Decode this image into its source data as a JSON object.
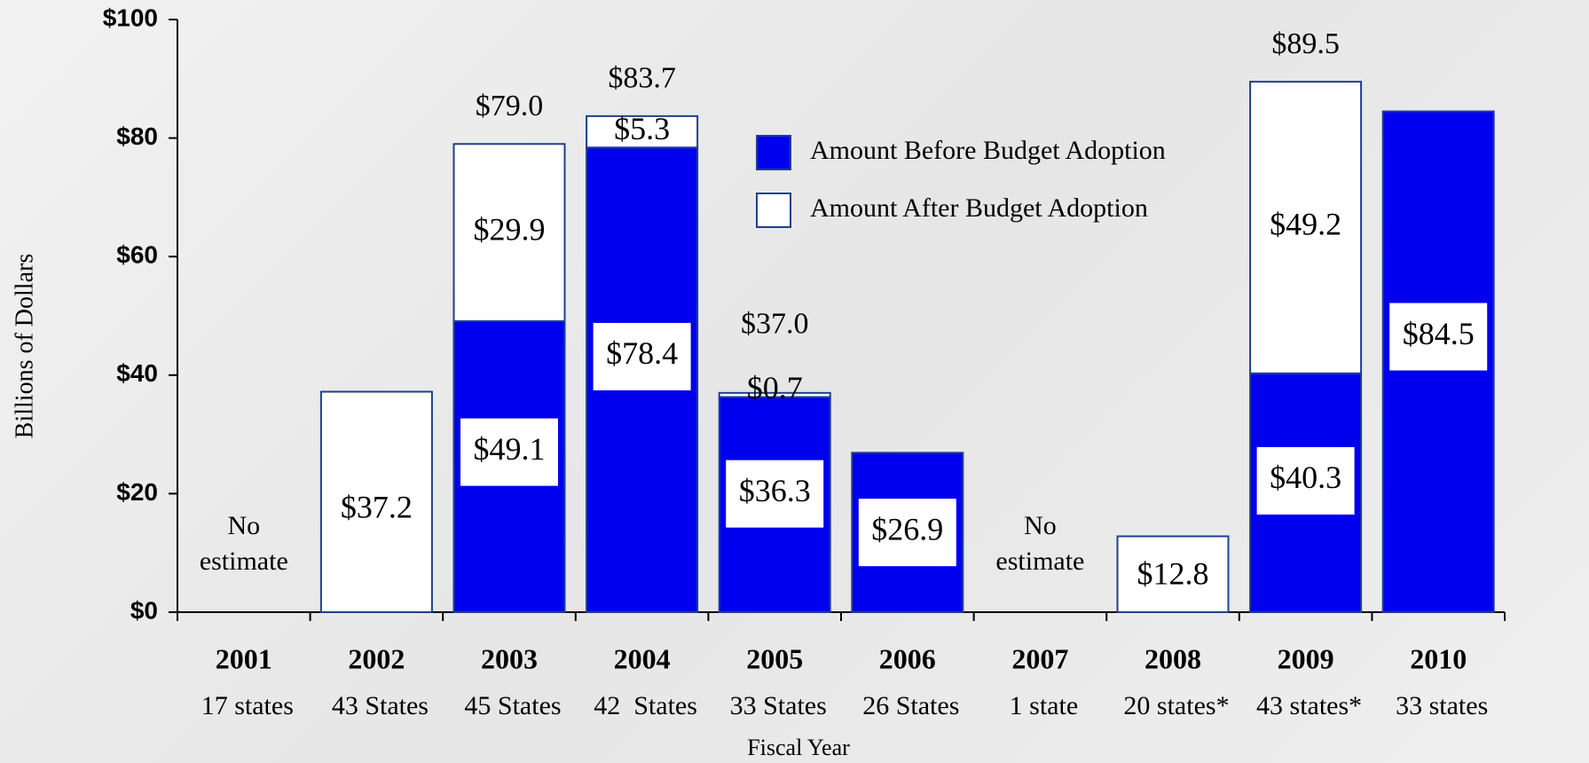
{
  "chart_data": {
    "type": "stacked_bar",
    "categories": [
      "2001",
      "2002",
      "2003",
      "2004",
      "2005",
      "2006",
      "2007",
      "2008",
      "2009",
      "2010"
    ],
    "sublabels": [
      "17 states",
      "43 States",
      "45 States",
      "42  States",
      "33 States",
      "26 States",
      "1 state",
      "20 states*",
      "43 states*",
      "33 states"
    ],
    "notes": [
      "No estimate",
      null,
      null,
      null,
      null,
      null,
      "No estimate",
      null,
      null,
      null
    ],
    "series": [
      {
        "name": "Amount Before Budget Adoption",
        "color": "#0000ee",
        "values": [
          null,
          null,
          49.1,
          78.4,
          36.3,
          26.9,
          null,
          null,
          40.3,
          84.5
        ],
        "value_labels": [
          null,
          null,
          "$49.1",
          "$78.4",
          "$36.3",
          "$26.9",
          null,
          null,
          "$40.3",
          "$84.5"
        ]
      },
      {
        "name": "Amount After Budget Adoption",
        "color": "#ffffff",
        "values": [
          null,
          37.2,
          29.9,
          5.3,
          0.7,
          null,
          null,
          12.8,
          49.2,
          null
        ],
        "value_labels": [
          null,
          "$37.2",
          "$29.9",
          "$5.3",
          "$0.7",
          null,
          null,
          "$12.8",
          "$49.2",
          null
        ]
      }
    ],
    "totals": [
      null,
      null,
      79.0,
      83.7,
      37.0,
      null,
      null,
      null,
      89.5,
      null
    ],
    "total_labels": [
      null,
      null,
      "$79.0",
      "$83.7",
      "$37.0",
      null,
      null,
      null,
      "$89.5",
      null
    ],
    "ylim": [
      0,
      100
    ],
    "yticks": [
      {
        "value": 0,
        "label": "$0"
      },
      {
        "value": 20,
        "label": "$20"
      },
      {
        "value": 40,
        "label": "$40"
      },
      {
        "value": 60,
        "label": "$60"
      },
      {
        "value": 80,
        "label": "$80"
      },
      {
        "value": 100,
        "label": "$100"
      }
    ],
    "ylabel": "Billions of Dollars",
    "xlabel": "Fiscal Year"
  }
}
